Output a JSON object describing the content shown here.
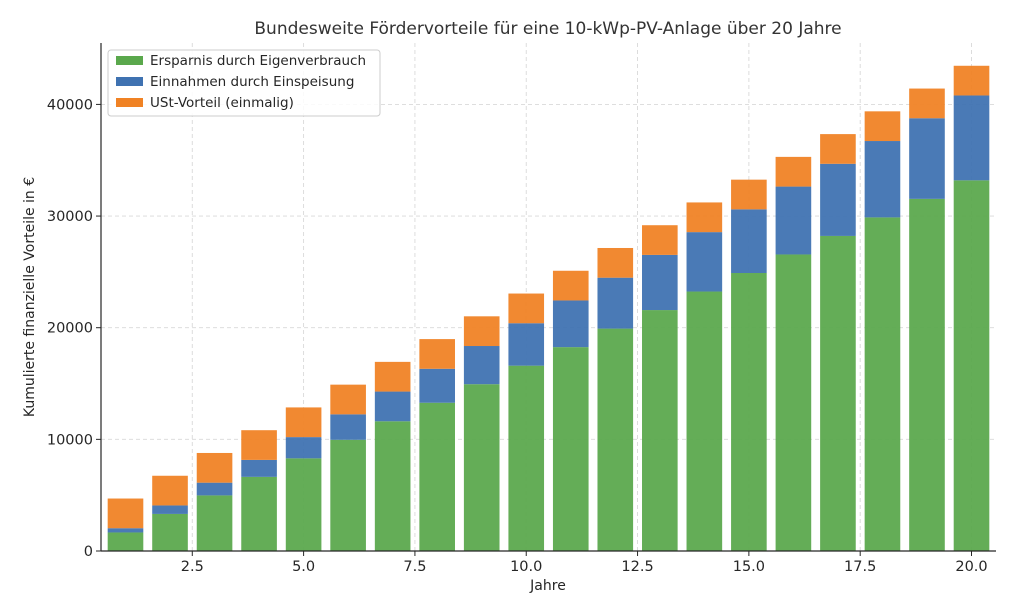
{
  "chart_data": {
    "type": "bar",
    "stacked": true,
    "title": "Bundesweite Fördervorteile für eine 10-kWp-PV-Anlage über 20 Jahre",
    "xlabel": "Jahre",
    "ylabel": "Kumulierte finanzielle Vorteile in €",
    "x": [
      1,
      2,
      3,
      4,
      5,
      6,
      7,
      8,
      9,
      10,
      11,
      12,
      13,
      14,
      15,
      16,
      17,
      18,
      19,
      20
    ],
    "xlim": [
      0.45,
      20.55
    ],
    "ylim": [
      0,
      45500
    ],
    "x_ticks": [
      2.5,
      5.0,
      7.5,
      10.0,
      12.5,
      15.0,
      17.5,
      20.0
    ],
    "x_tick_labels": [
      "2.5",
      "5.0",
      "7.5",
      "10.0",
      "12.5",
      "15.0",
      "17.5",
      "20.0"
    ],
    "y_ticks": [
      0,
      10000,
      20000,
      30000,
      40000
    ],
    "y_tick_labels": [
      "0",
      "10000",
      "20000",
      "30000",
      "40000"
    ],
    "grid": true,
    "legend_position": "top-left",
    "series": [
      {
        "name": "Ersparnis durch Eigenverbrauch",
        "color": "#5aa84c",
        "values": [
          1660,
          3320,
          4980,
          6640,
          8300,
          9960,
          11620,
          13280,
          14940,
          16600,
          18260,
          19920,
          21580,
          23240,
          24900,
          26560,
          28220,
          29880,
          31540,
          33200
        ]
      },
      {
        "name": "Einnahmen durch Einspeisung",
        "color": "#3f72b1",
        "values": [
          380,
          760,
          1140,
          1520,
          1900,
          2280,
          2660,
          3040,
          3420,
          3800,
          4180,
          4560,
          4940,
          5320,
          5700,
          6080,
          6460,
          6840,
          7220,
          7600
        ]
      },
      {
        "name": "USt-Vorteil (einmalig)",
        "color": "#f08224",
        "values": [
          2660,
          2660,
          2660,
          2660,
          2660,
          2660,
          2660,
          2660,
          2660,
          2660,
          2660,
          2660,
          2660,
          2660,
          2660,
          2660,
          2660,
          2660,
          2660,
          2660
        ]
      }
    ]
  }
}
